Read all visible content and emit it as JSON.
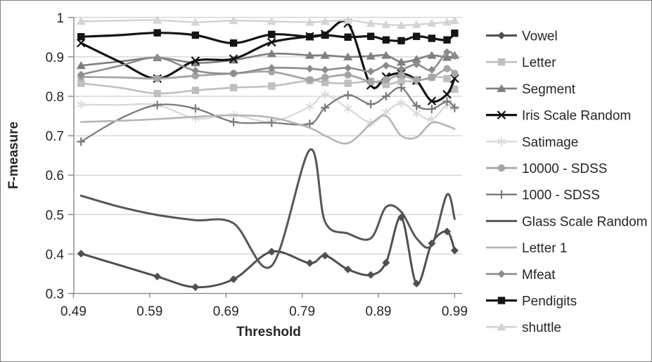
{
  "figure": {
    "background": "#ffffff",
    "border_color": "#7f7f7f",
    "gridline_color": "#c3c3c3",
    "axis_color": "#808080",
    "text_color": "#262626"
  },
  "axes": {
    "y_title": "F-measure",
    "x_title": "Threshold",
    "y_tick_labels": [
      "1",
      "0.9",
      "0.8",
      "0.7",
      "0.6",
      "0.5",
      "0.4",
      "0.3"
    ],
    "y_tick_values": [
      1.0,
      0.9,
      0.8,
      0.7,
      0.6,
      0.5,
      0.4,
      0.3
    ],
    "x_tick_labels": [
      "0.49",
      "0.59",
      "0.69",
      "0.79",
      "0.89",
      "0.99"
    ],
    "x_tick_values": [
      0.49,
      0.59,
      0.69,
      0.79,
      0.89,
      0.99
    ]
  },
  "chart_data": {
    "type": "line",
    "title": "",
    "xlabel": "Threshold",
    "ylabel": "F-measure",
    "xlim": [
      0.487,
      1.0
    ],
    "ylim": [
      0.3,
      1.0
    ],
    "grid": true,
    "smooth": true,
    "legend_position": "right",
    "marker_skip_x": [
      0.55
    ],
    "x": [
      0.5,
      0.55,
      0.6,
      0.65,
      0.7,
      0.75,
      0.8,
      0.82,
      0.85,
      0.88,
      0.9,
      0.92,
      0.94,
      0.96,
      0.98,
      0.99
    ],
    "series": [
      {
        "name": "Vowel",
        "marker": "diamond",
        "color": "#4f4f4f",
        "width": 3.0,
        "values": [
          0.401,
          0.372,
          0.343,
          0.316,
          0.336,
          0.406,
          0.377,
          0.396,
          0.361,
          0.347,
          0.378,
          0.493,
          0.325,
          0.427,
          0.457,
          0.409
        ]
      },
      {
        "name": "Letter",
        "marker": "square",
        "color": "#bfbfbf",
        "width": 2.6,
        "values": [
          0.833,
          0.822,
          0.807,
          0.815,
          0.822,
          0.826,
          0.84,
          0.835,
          0.833,
          0.838,
          0.83,
          0.838,
          0.838,
          0.848,
          0.845,
          0.818
        ]
      },
      {
        "name": "Segment",
        "marker": "triangle",
        "color": "#7f7f7f",
        "width": 2.6,
        "values": [
          0.878,
          0.888,
          0.898,
          0.885,
          0.892,
          0.908,
          0.904,
          0.904,
          0.9,
          0.902,
          0.904,
          0.887,
          0.894,
          0.904,
          0.899,
          0.904
        ]
      },
      {
        "name": "Iris Scale Random",
        "marker": "x",
        "color": "#121212",
        "width": 3.2,
        "values": [
          0.935,
          0.888,
          0.845,
          0.89,
          0.895,
          0.937,
          0.952,
          0.958,
          0.985,
          0.828,
          0.85,
          0.858,
          0.84,
          0.788,
          0.805,
          0.845
        ]
      },
      {
        "name": "Satimage",
        "marker": "asterisk",
        "color": "#d9d9d9",
        "width": 2.3,
        "values": [
          0.779,
          0.778,
          0.778,
          0.744,
          0.752,
          0.736,
          0.774,
          0.804,
          0.769,
          0.733,
          0.76,
          0.783,
          0.757,
          0.742,
          0.778,
          0.77
        ]
      },
      {
        "name": "10000 - SDSS",
        "marker": "circle",
        "color": "#a6a6a6",
        "width": 2.8,
        "values": [
          0.849,
          0.848,
          0.845,
          0.852,
          0.858,
          0.862,
          0.842,
          0.848,
          0.854,
          0.837,
          0.842,
          0.854,
          0.842,
          0.848,
          0.87,
          0.858
        ]
      },
      {
        "name": "1000 - SDSS",
        "marker": "plus",
        "color": "#7a7a7a",
        "width": 2.3,
        "values": [
          0.685,
          0.742,
          0.778,
          0.769,
          0.735,
          0.733,
          0.73,
          0.771,
          0.803,
          0.78,
          0.8,
          0.822,
          0.776,
          0.768,
          0.787,
          0.771
        ]
      },
      {
        "name": "Glass Scale Random",
        "marker": "none",
        "color": "#565656",
        "width": 3.0,
        "values": [
          0.548,
          0.52,
          0.499,
          0.486,
          0.478,
          0.37,
          0.664,
          0.482,
          0.452,
          0.44,
          0.519,
          0.507,
          0.44,
          0.423,
          0.551,
          0.489
        ]
      },
      {
        "name": "Letter 1",
        "marker": "none",
        "color": "#b5b5b5",
        "width": 2.6,
        "values": [
          0.735,
          0.738,
          0.742,
          0.748,
          0.752,
          0.746,
          0.72,
          0.7,
          0.681,
          0.73,
          0.75,
          0.7,
          0.696,
          0.733,
          0.725,
          0.717
        ]
      },
      {
        "name": "Mfeat",
        "marker": "diamond",
        "color": "#8c8c8c",
        "width": 2.6,
        "values": [
          0.855,
          0.877,
          0.898,
          0.865,
          0.858,
          0.872,
          0.87,
          0.867,
          0.872,
          0.863,
          0.878,
          0.869,
          0.881,
          0.867,
          0.912,
          0.902
        ]
      },
      {
        "name": "Pendigits",
        "marker": "square",
        "color": "#141414",
        "width": 3.2,
        "values": [
          0.951,
          0.955,
          0.961,
          0.955,
          0.935,
          0.957,
          0.951,
          0.955,
          0.95,
          0.952,
          0.943,
          0.941,
          0.952,
          0.947,
          0.943,
          0.96
        ]
      },
      {
        "name": "shuttle",
        "marker": "triangle",
        "color": "#d4d4d4",
        "width": 2.6,
        "values": [
          0.99,
          0.992,
          0.993,
          0.988,
          0.992,
          0.99,
          0.988,
          0.99,
          0.993,
          0.985,
          0.982,
          0.98,
          0.982,
          0.985,
          0.988,
          0.992
        ]
      }
    ]
  }
}
